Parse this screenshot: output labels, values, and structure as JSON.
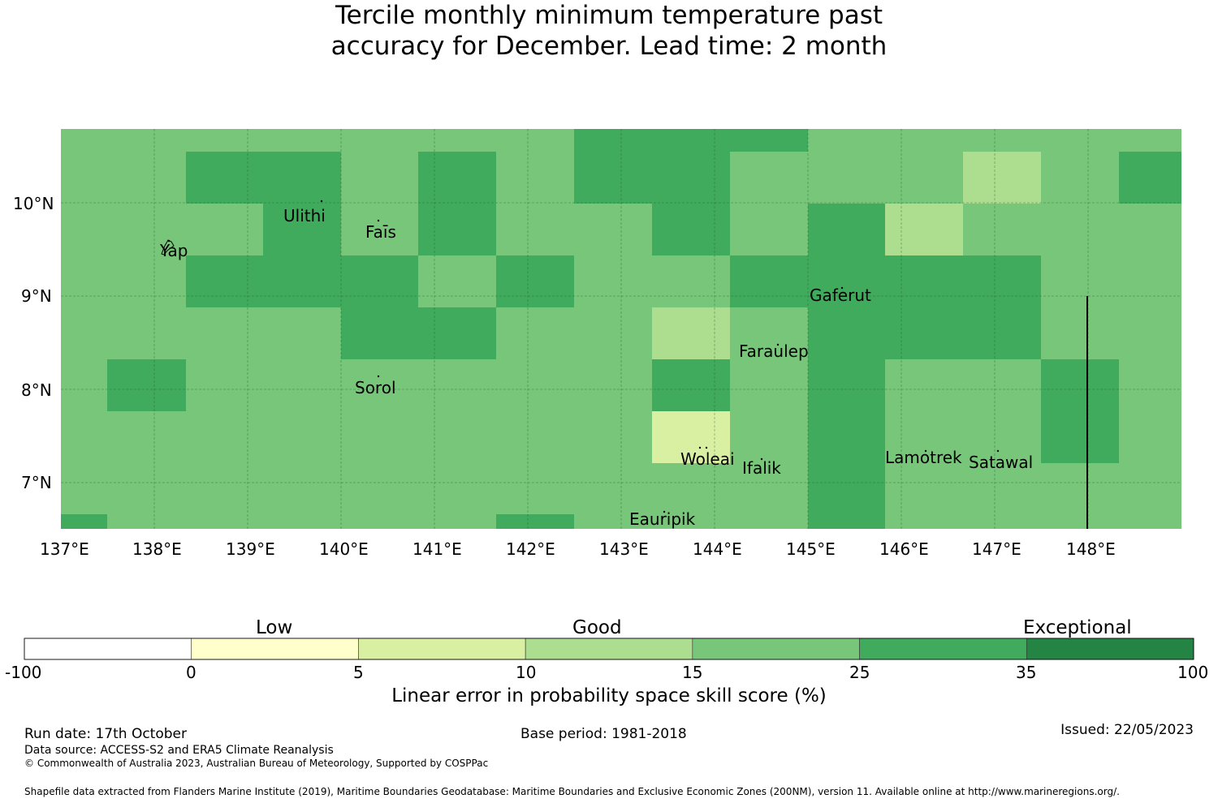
{
  "title": {
    "line1": "Tercile monthly minimum temperature past",
    "line2": "accuracy for December. Lead time: 2 month"
  },
  "map": {
    "lon_range": [
      137,
      149
    ],
    "lat_range": [
      6.5,
      10.8
    ],
    "lon_ticks": [
      "137°E",
      "138°E",
      "139°E",
      "140°E",
      "141°E",
      "142°E",
      "143°E",
      "144°E",
      "145°E",
      "146°E",
      "147°E",
      "148°E"
    ],
    "lat_ticks": [
      "10°N",
      "9°N",
      "8°N",
      "7°N"
    ],
    "colors": {
      "c15_25": "#78c679",
      "c25_35": "#41ab5d",
      "c10_15": "#addd8e",
      "c5_10": "#d9f0a3",
      "c0_5": "#ffffcc",
      "c35_100": "#238443",
      "neg": "#ffffff"
    },
    "places": [
      {
        "name": "Yap"
      },
      {
        "name": "Ulithi"
      },
      {
        "name": "Faīs"
      },
      {
        "name": "Gaferut"
      },
      {
        "name": "Faraulep"
      },
      {
        "name": "Sorol"
      },
      {
        "name": "Woleai"
      },
      {
        "name": "Ifalik"
      },
      {
        "name": "Lamotrek"
      },
      {
        "name": "Satawal"
      },
      {
        "name": "Eauripik"
      }
    ]
  },
  "colorbar": {
    "categories": [
      "Low",
      "Good",
      "Exceptional"
    ],
    "bounds": [
      "-100",
      "0",
      "5",
      "10",
      "15",
      "25",
      "35",
      "100"
    ],
    "colors": [
      "#ffffff",
      "#ffffcc",
      "#d9f0a3",
      "#addd8e",
      "#78c679",
      "#41ab5d",
      "#238443"
    ],
    "label": "Linear error in probability space skill score (%)"
  },
  "footer": {
    "run_date": "Run date: 17th October",
    "base_period": "Base period: 1981-2018",
    "issued": "Issued: 22/05/2023",
    "data_source": "Data source: ACCESS-S2 and ERA5 Climate Reanalysis",
    "copyright": "© Commonwealth of Australia 2023, Australian Bureau of Meteorology, Supported by COSPPac",
    "shapefile": "Shapefile data extracted from Flanders Marine Institute (2019), Maritime Boundaries Geodatabase: Maritime Boundaries and Exclusive Economic Zones (200NM), version 11. Available online at http://www.marineregions.org/."
  }
}
